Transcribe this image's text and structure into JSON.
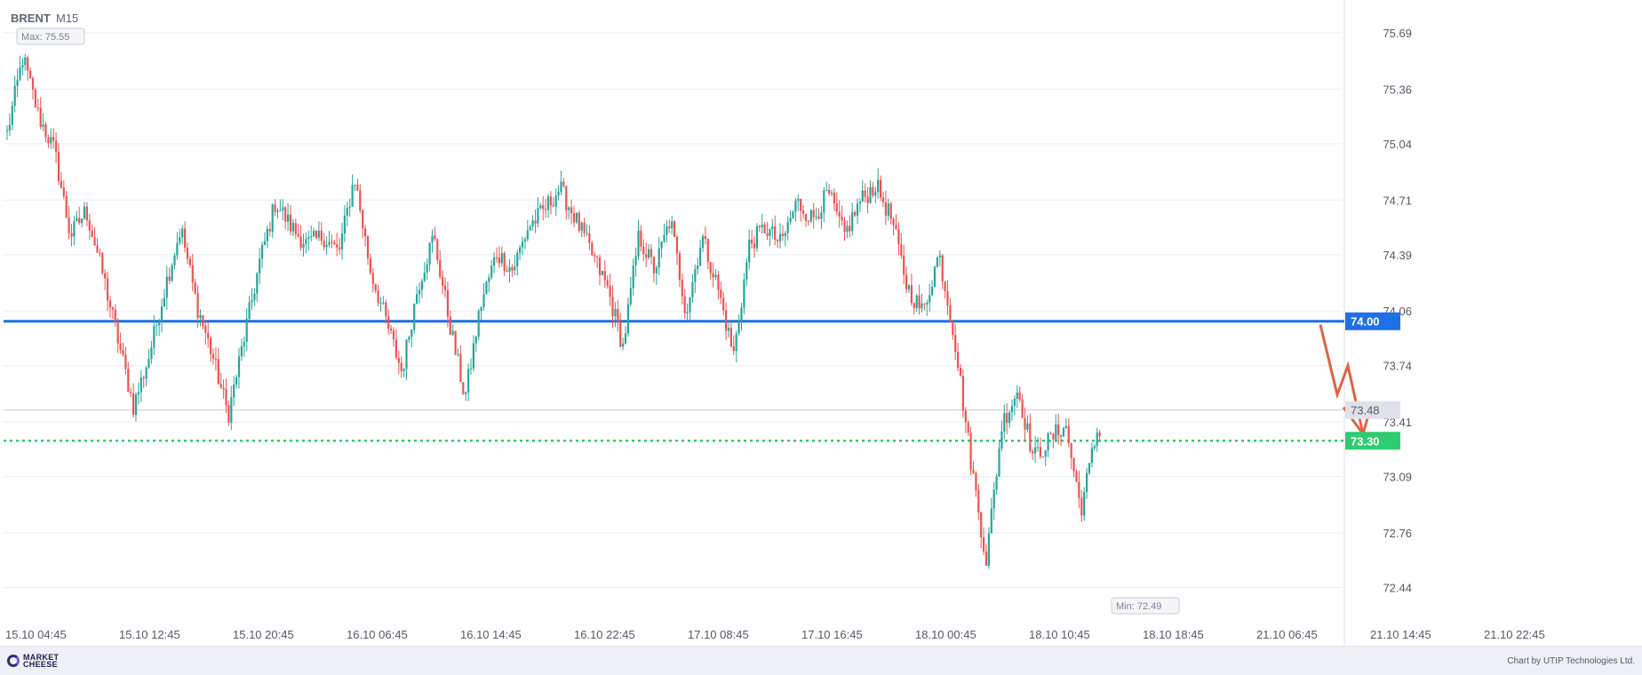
{
  "symbol": "BRENT",
  "timeframe": "M15",
  "footer": {
    "logo_line1": "MARKET",
    "logo_line2": "CHEESE",
    "credit": "Chart by UTIP Technologies Ltd."
  },
  "chart_data": {
    "type": "candlestick",
    "title": "BRENT  M15",
    "xlabel": "",
    "ylabel": "",
    "ylim": [
      72.24,
      75.83
    ],
    "y_ticks": [
      "75.69",
      "75.36",
      "75.04",
      "74.71",
      "74.39",
      "74.06",
      "73.74",
      "73.41",
      "73.09",
      "72.76",
      "72.44"
    ],
    "x_ticks": [
      "15.10 04:45",
      "15.10 12:45",
      "15.10 20:45",
      "16.10 06:45",
      "16.10 14:45",
      "16.10 22:45",
      "17.10 08:45",
      "17.10 16:45",
      "18.10 00:45",
      "18.10 10:45",
      "18.10 18:45",
      "21.10 06:45",
      "21.10 14:45",
      "21.10 22:45"
    ],
    "max_label": "Max: 75.55",
    "min_label": "Min: 72.49",
    "current_price": "73.48",
    "levels": [
      {
        "label": "74.00",
        "value": 74.0,
        "style": "solid",
        "color": "#1e6fe8"
      },
      {
        "label": "73.30",
        "value": 73.3,
        "style": "dotted",
        "color": "#2ecc71"
      }
    ],
    "projection_arrow": {
      "color": "#e06445",
      "path_values": [
        73.98,
        73.57,
        73.74,
        73.34
      ],
      "rebound_value": 73.52
    },
    "colors": {
      "up": "#26a69a",
      "down": "#ef5350",
      "grid": "#eceef2",
      "axis_text": "#555a66"
    },
    "anchors": [
      75.1,
      75.55,
      75.2,
      75.0,
      74.5,
      74.65,
      74.3,
      73.9,
      73.5,
      73.8,
      74.2,
      74.55,
      74.1,
      73.8,
      73.45,
      73.9,
      74.35,
      74.7,
      74.55,
      74.45,
      74.5,
      74.4,
      74.85,
      74.3,
      74.0,
      73.7,
      74.2,
      74.5,
      74.0,
      73.55,
      74.1,
      74.4,
      74.3,
      74.55,
      74.65,
      74.78,
      74.6,
      74.4,
      74.2,
      73.85,
      74.5,
      74.3,
      74.6,
      74.05,
      74.5,
      74.2,
      73.8,
      74.45,
      74.55,
      74.45,
      74.7,
      74.6,
      74.75,
      74.5,
      74.7,
      74.8,
      74.6,
      74.2,
      74.05,
      74.4,
      73.9,
      73.2,
      72.6,
      73.4,
      73.6,
      73.2,
      73.3,
      73.4,
      72.9,
      73.35,
      73.45
    ]
  }
}
